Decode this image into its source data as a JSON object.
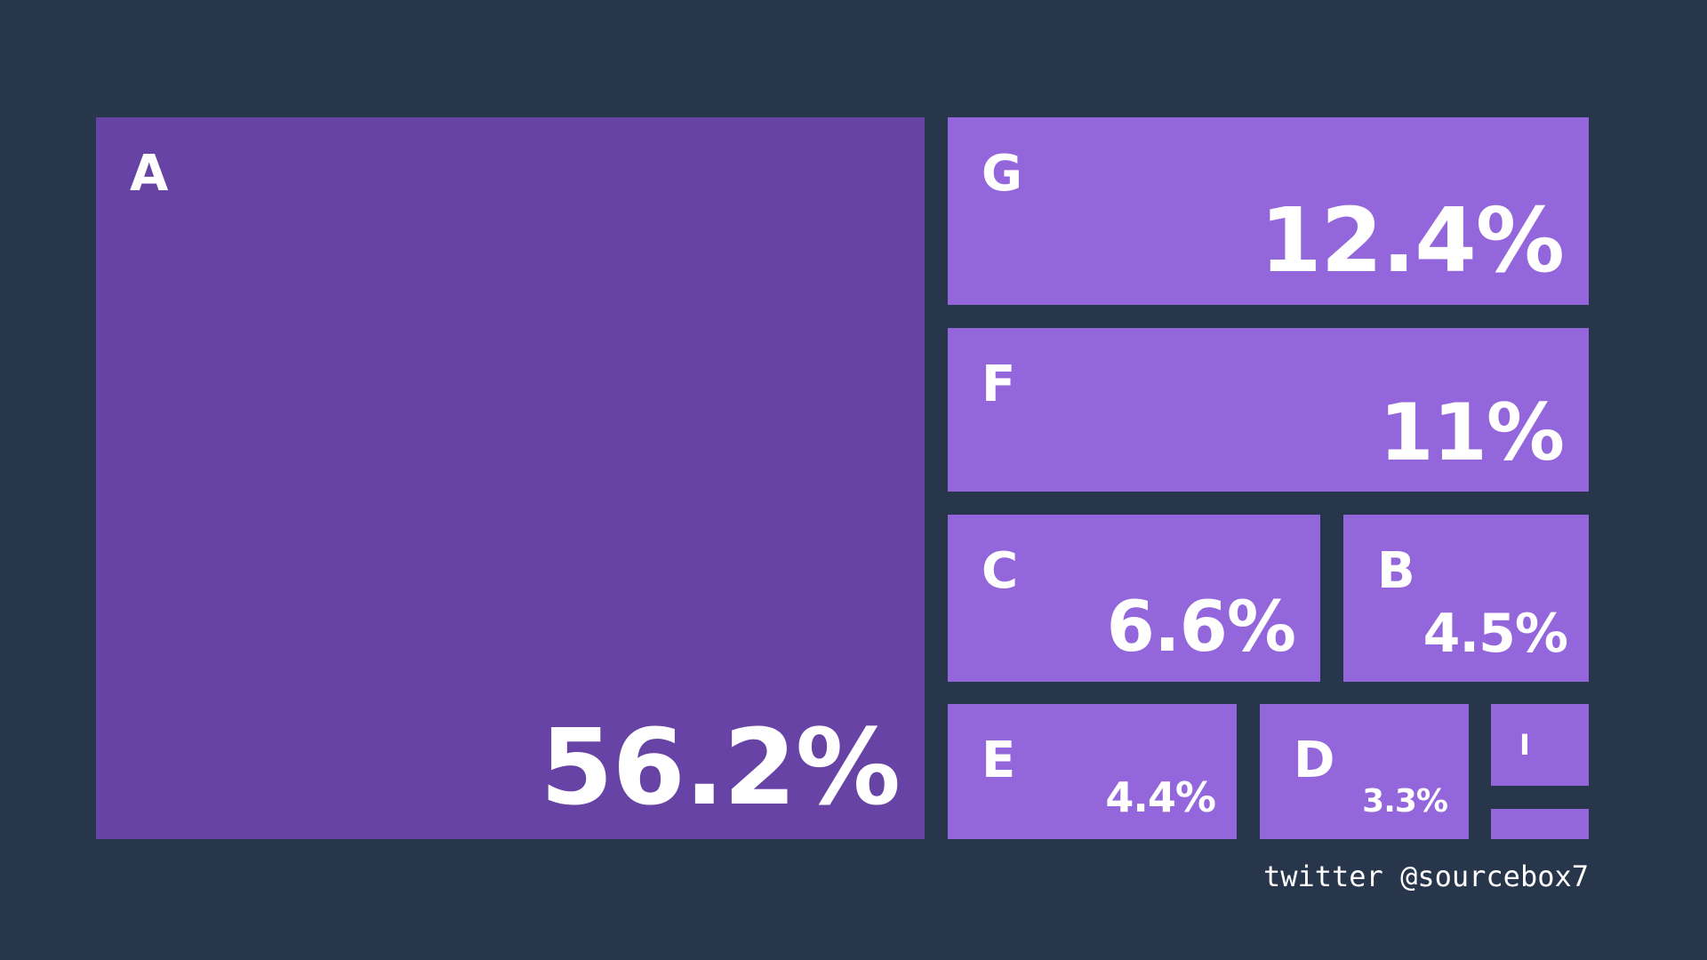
{
  "chart_data": {
    "type": "treemap",
    "items": [
      {
        "name": "A",
        "value": 56.2,
        "value_label": "56.2%",
        "color": "#6743a5"
      },
      {
        "name": "G",
        "value": 12.4,
        "value_label": "12.4%",
        "color": "#9466db"
      },
      {
        "name": "F",
        "value": 11.0,
        "value_label": "11%",
        "color": "#9466db"
      },
      {
        "name": "C",
        "value": 6.6,
        "value_label": "6.6%",
        "color": "#9466db"
      },
      {
        "name": "B",
        "value": 4.5,
        "value_label": "4.5%",
        "color": "#9466db"
      },
      {
        "name": "E",
        "value": 4.4,
        "value_label": "4.4%",
        "color": "#9466db"
      },
      {
        "name": "D",
        "value": 3.3,
        "value_label": "3.3%",
        "color": "#9466db"
      },
      {
        "name": "I",
        "value": 1.0,
        "value_label": "",
        "color": "#9466db"
      },
      {
        "name": "",
        "value": 0.6,
        "value_label": "",
        "color": "#9466db"
      }
    ]
  },
  "footer": {
    "credit": "twitter @sourcebox7"
  },
  "colors": {
    "background": "#27364b"
  }
}
